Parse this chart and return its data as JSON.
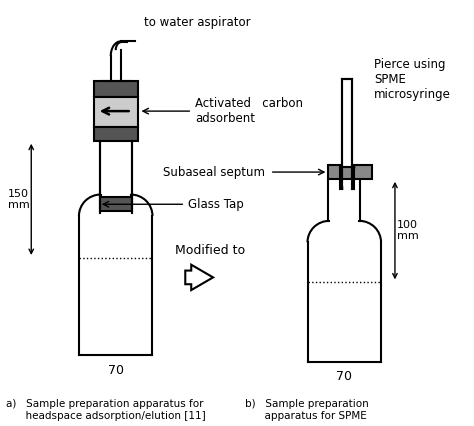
{
  "background_color": "#ffffff",
  "text_color": "#000000",
  "figure_size": [
    4.74,
    4.26
  ],
  "dpi": 100,
  "label_a": "a)   Sample preparation apparatus for\n      headspace adsorption/elution [11]",
  "label_b": "b)   Sample preparation\n      apparatus for SPME",
  "modified_to": "Modified to",
  "to_water_aspirator": "to water aspirator",
  "activated_carbon": "Activated   carbon\nadsorbent",
  "glass_tap": "Glass Tap",
  "subaseal_septum": "Subaseal septum",
  "pierce_using": "Pierce using\nSPME\nmicrosyringe",
  "dim_150mm": "150\nmm",
  "dim_100mm": "100\nmm",
  "dim_70a": "70",
  "dim_70b": "70",
  "gray": "#888888",
  "dark_gray": "#555555",
  "light_gray": "#cccccc"
}
